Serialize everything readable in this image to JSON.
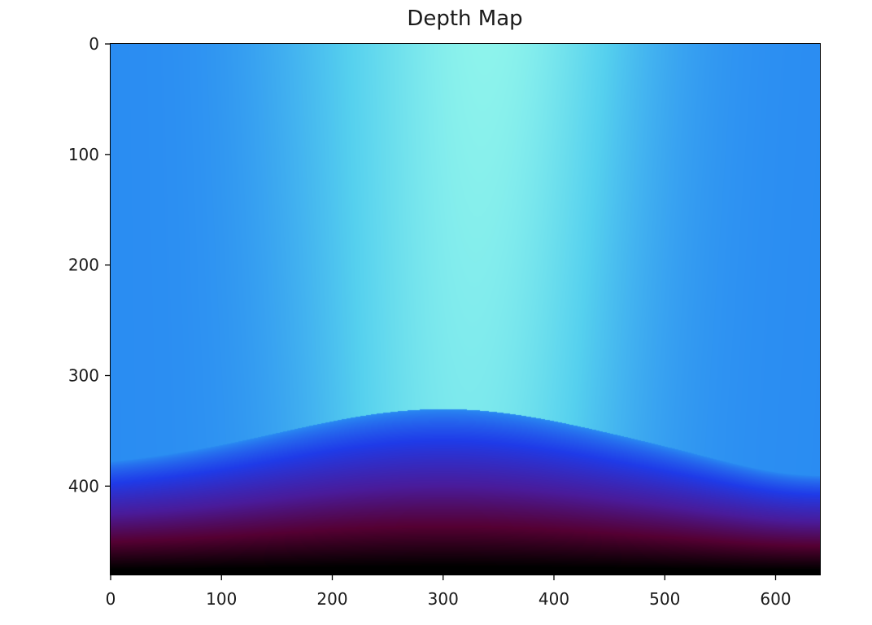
{
  "chart_data": {
    "type": "heatmap",
    "title": "Depth Map",
    "xlabel": "",
    "ylabel": "",
    "xlim": [
      0,
      640
    ],
    "ylim": [
      480,
      0
    ],
    "x_ticks": [
      0,
      100,
      200,
      300,
      400,
      500,
      600
    ],
    "y_ticks": [
      0,
      100,
      200,
      300,
      400
    ],
    "x_tick_labels": [
      "0",
      "100",
      "200",
      "300",
      "400",
      "500",
      "600"
    ],
    "y_tick_labels": [
      "0",
      "100",
      "200",
      "300",
      "400"
    ],
    "image_size": {
      "width": 640,
      "height": 480
    },
    "grid": false,
    "colormap": [
      "#000000",
      "#550033",
      "#4a1b9a",
      "#1f3be8",
      "#2a8cf2",
      "#55d0ee",
      "#93f7ec"
    ],
    "description_regions": {
      "bright_center_column_x": [
        250,
        420
      ],
      "dark_band_start_y": 340
    }
  }
}
